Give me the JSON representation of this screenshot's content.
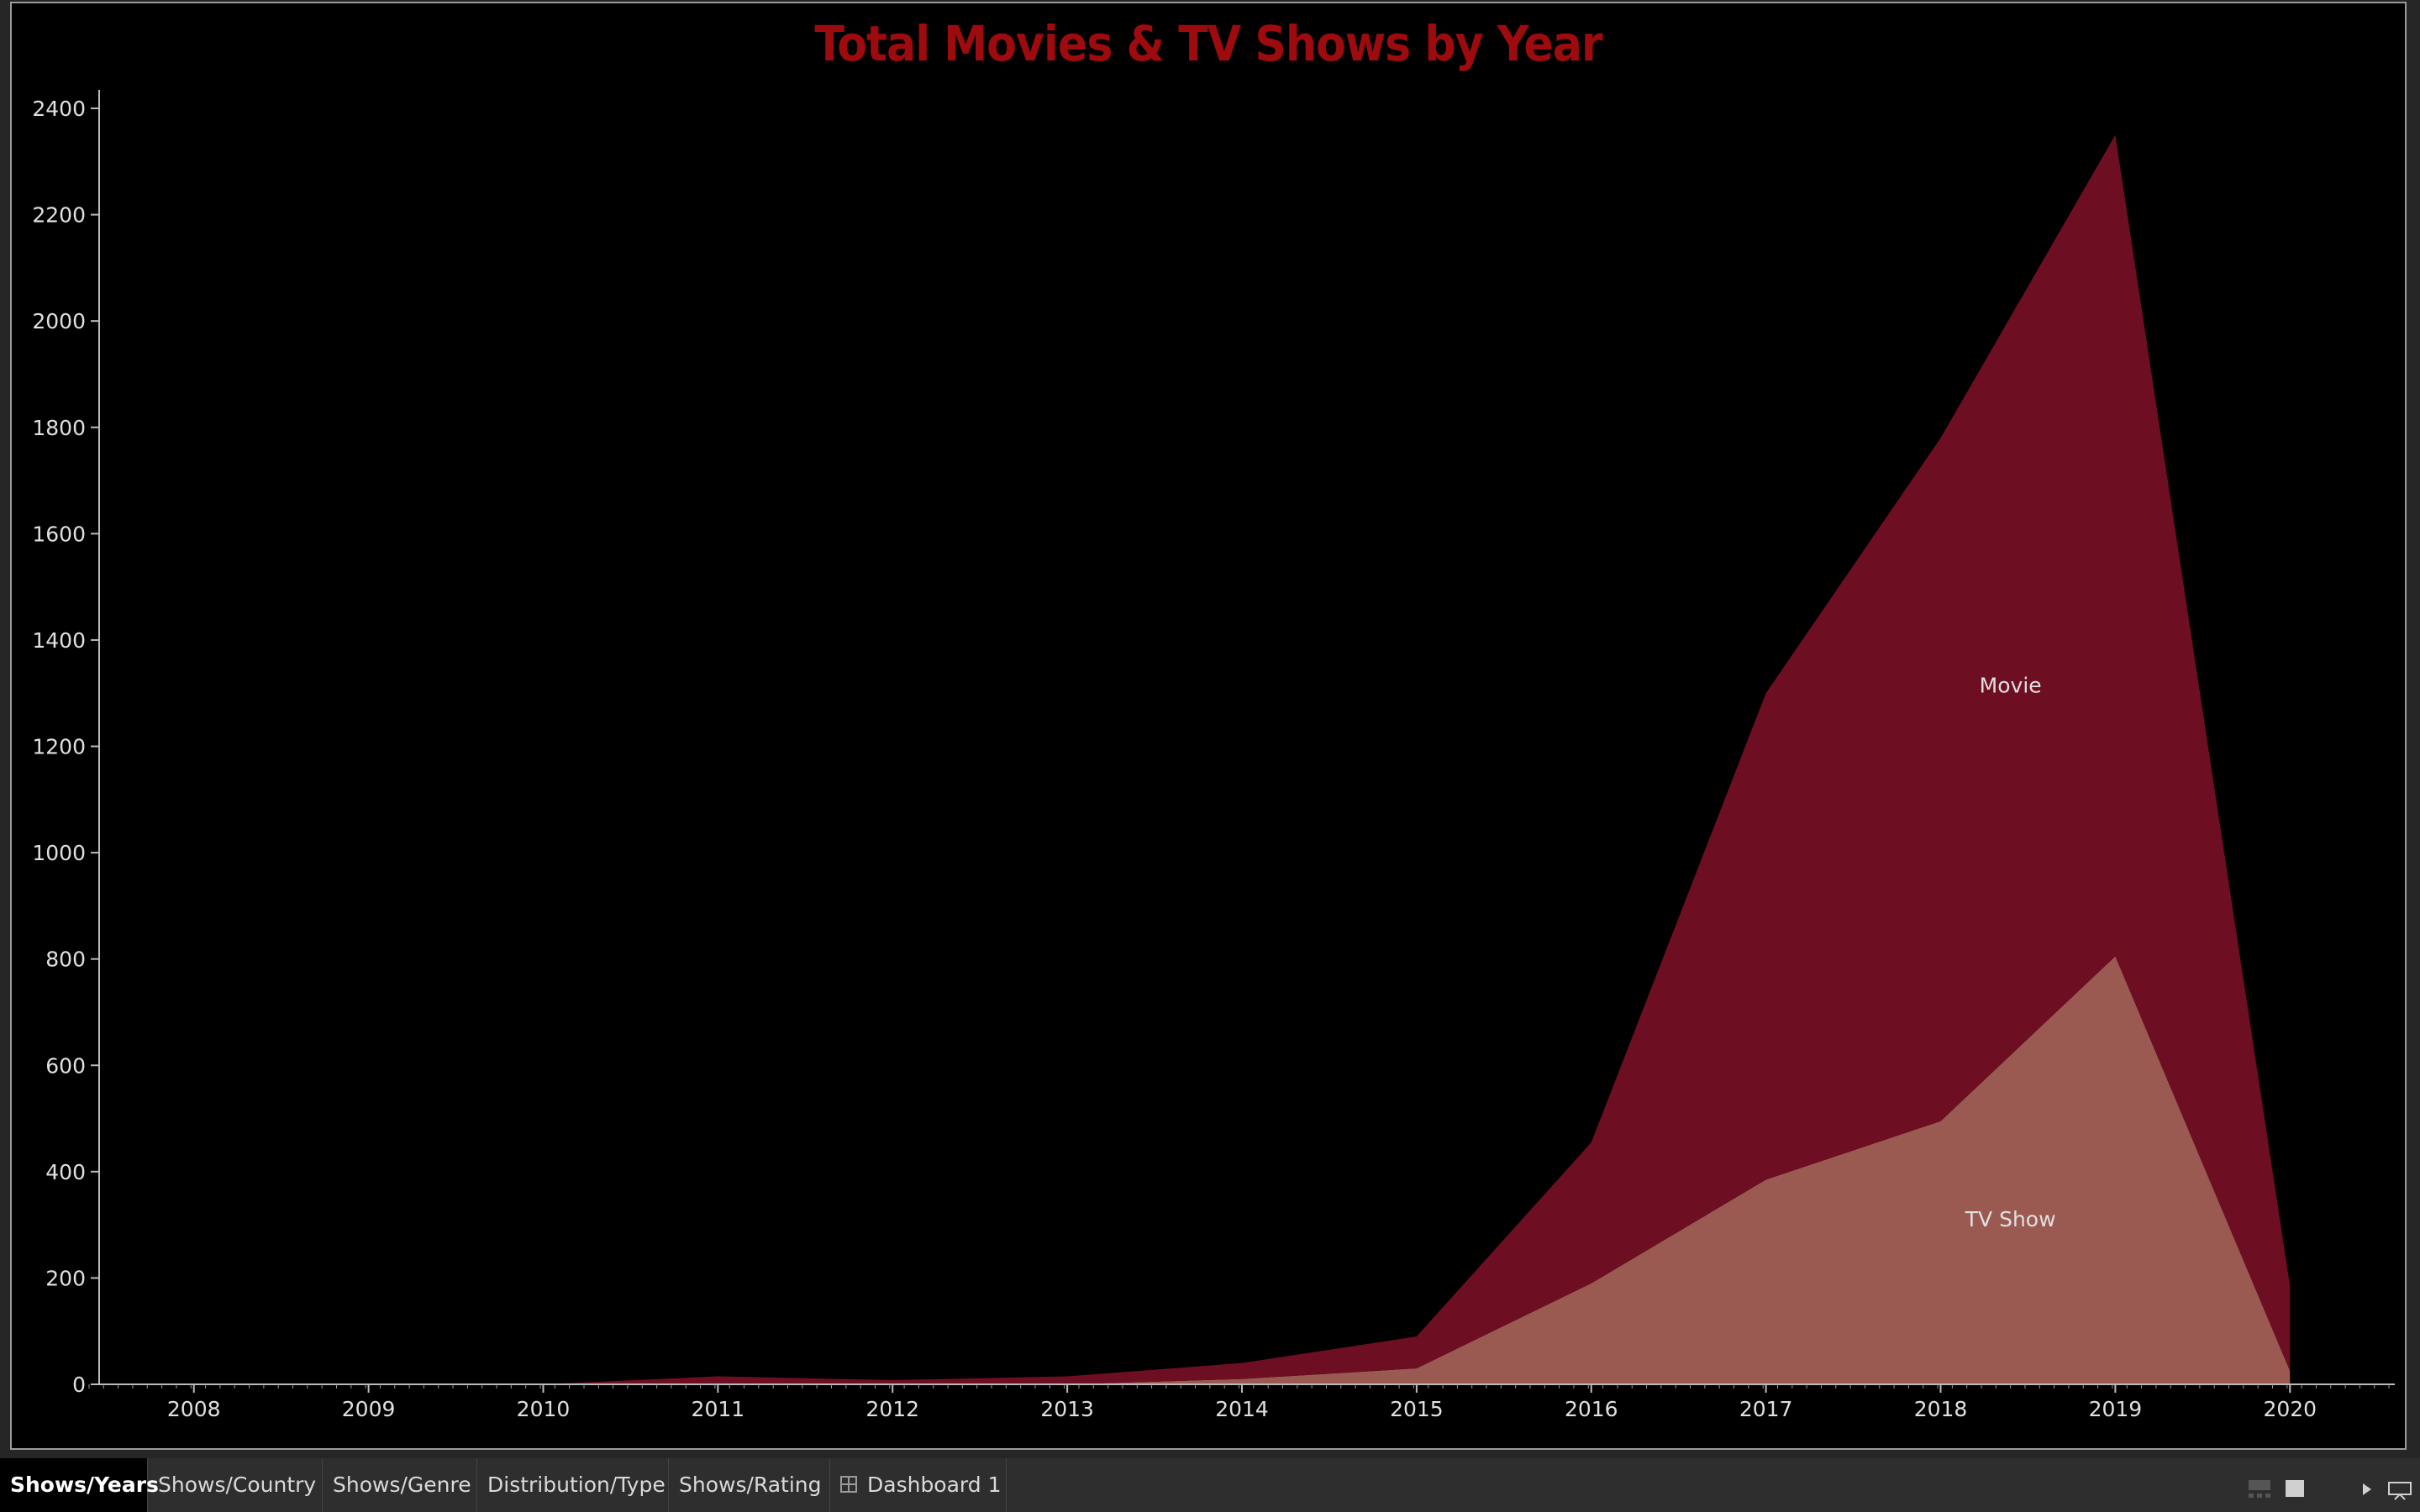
{
  "chart_data": {
    "type": "area",
    "title": "Total Movies & TV Shows by Year",
    "x": [
      2008,
      2009,
      2010,
      2011,
      2012,
      2013,
      2014,
      2015,
      2016,
      2017,
      2018,
      2019,
      2020
    ],
    "series": [
      {
        "name": "TV Show",
        "values": [
          0,
          0,
          0,
          0,
          0,
          0,
          10,
          30,
          190,
          385,
          495,
          805,
          25
        ],
        "color": "#9a5a52"
      },
      {
        "name": "Movie",
        "values": [
          0,
          0,
          0,
          15,
          8,
          15,
          30,
          60,
          265,
          915,
          1285,
          1545,
          160
        ],
        "color": "#6e0e22"
      }
    ],
    "stacked": true,
    "ylim": [
      0,
      2400
    ],
    "yticks": [
      0,
      200,
      400,
      600,
      800,
      1000,
      1200,
      1400,
      1600,
      1800,
      2000,
      2200,
      2400
    ],
    "xlabel": "",
    "ylabel": "",
    "grid": false,
    "label_color": "#e0e0e0",
    "title_color": "#9e0b0f"
  },
  "tabs": [
    {
      "label": "Shows/Years",
      "active": true
    },
    {
      "label": "Shows/Country",
      "active": false
    },
    {
      "label": "Shows/Genre",
      "active": false
    },
    {
      "label": "Distribution/Type",
      "active": false
    },
    {
      "label": "Shows/Rating",
      "active": false
    },
    {
      "label": "Dashboard 1",
      "active": false,
      "icon": "dashboard-grid-icon"
    }
  ],
  "controls": [
    "filmstrip-view-icon",
    "single-view-icon",
    "play-icon",
    "presentation-mode-icon"
  ]
}
